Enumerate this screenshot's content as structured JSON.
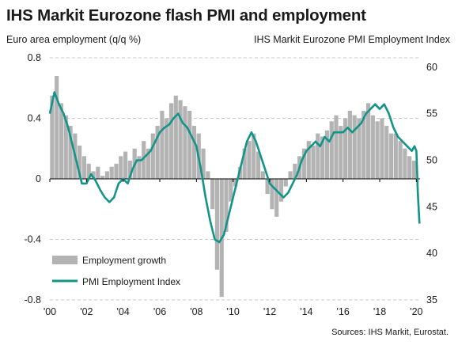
{
  "chart_data": {
    "type": "bar+line",
    "title": "IHS Markit Eurozone flash PMI and employment",
    "ylabel_left": "Euro area employment (q/q %)",
    "ylabel_right": "IHS Markit  Eurozone PMI Employment Index",
    "source": "Sources: IHS Markit, Eurostat.",
    "x_tick_labels": [
      "'00",
      "'02",
      "'04",
      "'06",
      "'08",
      "'10",
      "'12",
      "'14",
      "'16",
      "'18",
      "'20"
    ],
    "y_left": {
      "ticks": [
        "0.8",
        "0.4",
        "0",
        "-0.4",
        "-0.8"
      ],
      "ylim": [
        -0.8,
        0.8
      ]
    },
    "y_right": {
      "ticks": [
        "60",
        "55",
        "50",
        "45",
        "40",
        "35"
      ],
      "ylim": [
        35,
        61
      ]
    },
    "grid": "horizontal dashed",
    "legend_position": "bottom-left",
    "series": [
      {
        "name": "Employment growth",
        "type": "bar",
        "axis": "left",
        "color": "#b3b3b3",
        "x": [
          2000.0,
          2000.25,
          2000.5,
          2000.75,
          2001.0,
          2001.25,
          2001.5,
          2001.75,
          2002.0,
          2002.25,
          2002.5,
          2002.75,
          2003.0,
          2003.25,
          2003.5,
          2003.75,
          2004.0,
          2004.25,
          2004.5,
          2004.75,
          2005.0,
          2005.25,
          2005.5,
          2005.75,
          2006.0,
          2006.25,
          2006.5,
          2006.75,
          2007.0,
          2007.25,
          2007.5,
          2007.75,
          2008.0,
          2008.25,
          2008.5,
          2008.75,
          2009.0,
          2009.25,
          2009.5,
          2009.75,
          2010.0,
          2010.25,
          2010.5,
          2010.75,
          2011.0,
          2011.25,
          2011.5,
          2011.75,
          2012.0,
          2012.25,
          2012.5,
          2012.75,
          2013.0,
          2013.25,
          2013.5,
          2013.75,
          2014.0,
          2014.25,
          2014.5,
          2014.75,
          2015.0,
          2015.25,
          2015.5,
          2015.75,
          2016.0,
          2016.25,
          2016.5,
          2016.75,
          2017.0,
          2017.25,
          2017.5,
          2017.75,
          2018.0,
          2018.25,
          2018.5,
          2018.75,
          2019.0,
          2019.25,
          2019.5,
          2019.75
        ],
        "values": [
          0.55,
          0.68,
          0.5,
          0.42,
          0.35,
          0.3,
          0.22,
          0.15,
          0.1,
          0.05,
          0.08,
          0.02,
          0.05,
          0.08,
          0.1,
          0.15,
          0.18,
          0.12,
          0.2,
          0.15,
          0.25,
          0.2,
          0.3,
          0.35,
          0.45,
          0.4,
          0.5,
          0.55,
          0.52,
          0.48,
          0.45,
          0.35,
          0.3,
          0.2,
          0.05,
          -0.2,
          -0.6,
          -0.78,
          -0.35,
          -0.15,
          -0.05,
          0.08,
          0.2,
          0.25,
          0.3,
          0.18,
          0.05,
          -0.1,
          -0.2,
          -0.25,
          -0.15,
          -0.05,
          0.05,
          0.1,
          0.15,
          0.2,
          0.25,
          0.22,
          0.3,
          0.28,
          0.32,
          0.38,
          0.42,
          0.35,
          0.4,
          0.45,
          0.42,
          0.4,
          0.45,
          0.5,
          0.42,
          0.38,
          0.4,
          0.35,
          0.3,
          0.3,
          0.25,
          0.2,
          0.15,
          0.12
        ]
      },
      {
        "name": "PMI Employment Index",
        "type": "line",
        "axis": "right",
        "color": "#129488",
        "x": [
          2000.0,
          2000.25,
          2000.5,
          2000.75,
          2001.0,
          2001.25,
          2001.5,
          2001.75,
          2002.0,
          2002.25,
          2002.5,
          2002.75,
          2003.0,
          2003.25,
          2003.5,
          2003.75,
          2004.0,
          2004.25,
          2004.5,
          2004.75,
          2005.0,
          2005.25,
          2005.5,
          2005.75,
          2006.0,
          2006.25,
          2006.5,
          2006.75,
          2007.0,
          2007.25,
          2007.5,
          2007.75,
          2008.0,
          2008.25,
          2008.5,
          2008.75,
          2009.0,
          2009.25,
          2009.5,
          2009.75,
          2010.0,
          2010.25,
          2010.5,
          2010.75,
          2011.0,
          2011.25,
          2011.5,
          2011.75,
          2012.0,
          2012.25,
          2012.5,
          2012.75,
          2013.0,
          2013.25,
          2013.5,
          2013.75,
          2014.0,
          2014.25,
          2014.5,
          2014.75,
          2015.0,
          2015.25,
          2015.5,
          2015.75,
          2016.0,
          2016.25,
          2016.5,
          2016.75,
          2017.0,
          2017.25,
          2017.5,
          2017.75,
          2018.0,
          2018.25,
          2018.5,
          2018.75,
          2019.0,
          2019.25,
          2019.5,
          2019.75,
          2019.9,
          2020.0,
          2020.08,
          2020.17
        ],
        "values": [
          55.0,
          57.3,
          56.0,
          55.0,
          53.5,
          51.5,
          49.5,
          47.5,
          47.5,
          48.5,
          47.8,
          46.8,
          46.0,
          45.5,
          46.0,
          47.5,
          48.0,
          47.5,
          49.0,
          50.0,
          50.0,
          50.5,
          51.0,
          52.0,
          53.0,
          53.5,
          53.8,
          54.5,
          55.0,
          54.0,
          53.5,
          52.5,
          51.5,
          49.0,
          46.0,
          43.5,
          41.5,
          41.2,
          42.0,
          44.0,
          46.0,
          48.0,
          50.0,
          52.0,
          53.0,
          52.0,
          50.5,
          49.0,
          47.5,
          47.0,
          46.5,
          46.0,
          46.5,
          47.5,
          48.5,
          50.0,
          51.0,
          51.5,
          52.0,
          51.5,
          52.5,
          52.0,
          53.0,
          53.0,
          53.0,
          53.5,
          53.0,
          53.5,
          54.0,
          55.0,
          55.5,
          56.0,
          55.5,
          56.0,
          55.0,
          53.5,
          52.5,
          52.0,
          51.5,
          51.0,
          51.5,
          51.0,
          46.5,
          43.2
        ]
      }
    ]
  }
}
